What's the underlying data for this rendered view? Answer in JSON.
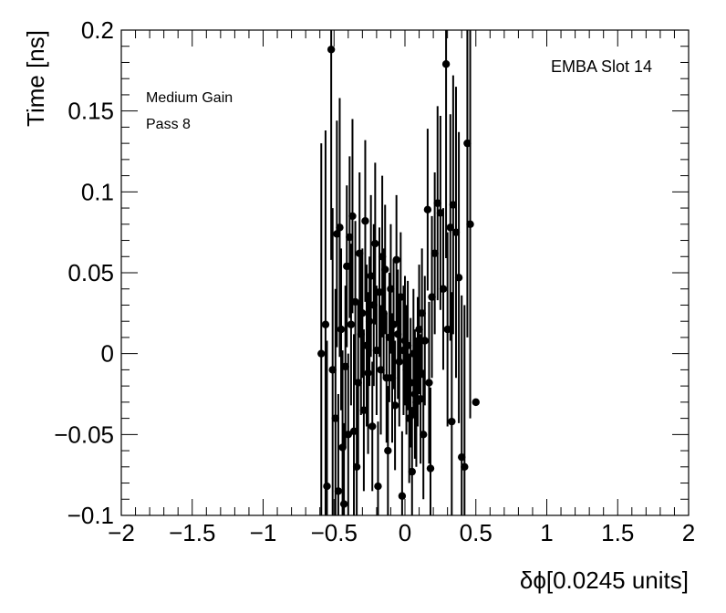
{
  "chart_data": {
    "type": "scatter",
    "title": "",
    "xlabel": "δϕ[0.0245 units]",
    "ylabel": "Time [ns]",
    "xlim": [
      -2,
      2
    ],
    "ylim": [
      -0.1,
      0.2
    ],
    "grid": false,
    "annotations": {
      "top_right": "EMBA Slot 14",
      "top_left_line1": "Medium Gain",
      "top_left_line2": "Pass 8"
    },
    "x_ticks": [
      -2,
      -1.5,
      -1,
      -0.5,
      0,
      0.5,
      1,
      1.5,
      2
    ],
    "x_tick_labels": [
      "−2",
      "−1.5",
      "−1",
      "−0.5",
      "0",
      "0.5",
      "1",
      "1.5",
      "2"
    ],
    "y_ticks": [
      -0.1,
      -0.05,
      0,
      0.05,
      0.1,
      0.15,
      0.2
    ],
    "y_tick_labels": [
      "−0.1",
      "−0.05",
      "0",
      "0.05",
      "0.1",
      "0.15",
      "0.2"
    ],
    "marker_color": "#000000",
    "points": [
      {
        "x": -0.59,
        "y": 0.0,
        "err": 0.13
      },
      {
        "x": -0.56,
        "y": 0.018,
        "err": 0.12
      },
      {
        "x": -0.55,
        "y": -0.082,
        "err": 0.09
      },
      {
        "x": -0.52,
        "y": 0.188,
        "err": 0.13
      },
      {
        "x": -0.51,
        "y": -0.01,
        "err": 0.1
      },
      {
        "x": -0.49,
        "y": -0.04,
        "err": 0.08
      },
      {
        "x": -0.48,
        "y": 0.074,
        "err": 0.07
      },
      {
        "x": -0.47,
        "y": -0.085,
        "err": 0.06
      },
      {
        "x": -0.46,
        "y": 0.078,
        "err": 0.08
      },
      {
        "x": -0.45,
        "y": 0.015,
        "err": 0.05
      },
      {
        "x": -0.44,
        "y": -0.058,
        "err": 0.06
      },
      {
        "x": -0.43,
        "y": -0.093,
        "err": 0.05
      },
      {
        "x": -0.42,
        "y": -0.008,
        "err": 0.05
      },
      {
        "x": -0.41,
        "y": 0.054,
        "err": 0.05
      },
      {
        "x": -0.4,
        "y": -0.05,
        "err": 0.05
      },
      {
        "x": -0.39,
        "y": 0.072,
        "err": 0.05
      },
      {
        "x": -0.38,
        "y": 0.018,
        "err": 0.05
      },
      {
        "x": -0.37,
        "y": 0.085,
        "err": 0.06
      },
      {
        "x": -0.36,
        "y": -0.048,
        "err": 0.06
      },
      {
        "x": -0.35,
        "y": 0.032,
        "err": 0.05
      },
      {
        "x": -0.34,
        "y": -0.07,
        "err": 0.05
      },
      {
        "x": -0.33,
        "y": -0.018,
        "err": 0.05
      },
      {
        "x": -0.32,
        "y": 0.062,
        "err": 0.05
      },
      {
        "x": -0.31,
        "y": 0.012,
        "err": 0.05
      },
      {
        "x": -0.3,
        "y": 0.025,
        "err": 0.04
      },
      {
        "x": -0.29,
        "y": -0.035,
        "err": 0.05
      },
      {
        "x": -0.28,
        "y": 0.082,
        "err": 0.05
      },
      {
        "x": -0.27,
        "y": 0.005,
        "err": 0.05
      },
      {
        "x": -0.26,
        "y": -0.012,
        "err": 0.05
      },
      {
        "x": -0.25,
        "y": 0.02,
        "err": 0.04
      },
      {
        "x": -0.24,
        "y": 0.048,
        "err": 0.05
      },
      {
        "x": -0.23,
        "y": -0.045,
        "err": 0.04
      },
      {
        "x": -0.22,
        "y": 0.03,
        "err": 0.05
      },
      {
        "x": -0.21,
        "y": 0.068,
        "err": 0.05
      },
      {
        "x": -0.2,
        "y": 0.002,
        "err": 0.04
      },
      {
        "x": -0.19,
        "y": -0.082,
        "err": 0.04
      },
      {
        "x": -0.18,
        "y": 0.038,
        "err": 0.04
      },
      {
        "x": -0.17,
        "y": -0.01,
        "err": 0.04
      },
      {
        "x": -0.16,
        "y": 0.06,
        "err": 0.05
      },
      {
        "x": -0.15,
        "y": 0.025,
        "err": 0.04
      },
      {
        "x": -0.14,
        "y": 0.052,
        "err": 0.04
      },
      {
        "x": -0.13,
        "y": -0.015,
        "err": 0.04
      },
      {
        "x": -0.12,
        "y": -0.06,
        "err": 0.04
      },
      {
        "x": -0.11,
        "y": 0.01,
        "err": 0.04
      },
      {
        "x": -0.1,
        "y": 0.04,
        "err": 0.04
      },
      {
        "x": -0.09,
        "y": -0.015,
        "err": 0.04
      },
      {
        "x": -0.08,
        "y": 0.018,
        "err": 0.04
      },
      {
        "x": -0.07,
        "y": -0.032,
        "err": 0.04
      },
      {
        "x": -0.06,
        "y": 0.058,
        "err": 0.04
      },
      {
        "x": -0.05,
        "y": 0.012,
        "err": 0.04
      },
      {
        "x": -0.04,
        "y": -0.005,
        "err": 0.04
      },
      {
        "x": -0.03,
        "y": 0.035,
        "err": 0.04
      },
      {
        "x": -0.02,
        "y": -0.088,
        "err": 0.04
      },
      {
        "x": -0.01,
        "y": 0.002,
        "err": 0.04
      },
      {
        "x": 0.0,
        "y": 0.008,
        "err": 0.04
      },
      {
        "x": 0.01,
        "y": -0.01,
        "err": 0.04
      },
      {
        "x": 0.02,
        "y": 0.005,
        "err": 0.04
      },
      {
        "x": 0.03,
        "y": -0.04,
        "err": 0.04
      },
      {
        "x": 0.04,
        "y": -0.018,
        "err": 0.04
      },
      {
        "x": 0.05,
        "y": -0.073,
        "err": 0.04
      },
      {
        "x": 0.06,
        "y": 0.0,
        "err": 0.04
      },
      {
        "x": 0.07,
        "y": -0.025,
        "err": 0.04
      },
      {
        "x": 0.08,
        "y": -0.03,
        "err": 0.04
      },
      {
        "x": 0.09,
        "y": -0.005,
        "err": 0.04
      },
      {
        "x": 0.1,
        "y": 0.015,
        "err": 0.04
      },
      {
        "x": 0.11,
        "y": -0.028,
        "err": 0.04
      },
      {
        "x": 0.12,
        "y": 0.025,
        "err": 0.04
      },
      {
        "x": 0.13,
        "y": -0.05,
        "err": 0.04
      },
      {
        "x": 0.14,
        "y": 0.008,
        "err": 0.04
      },
      {
        "x": 0.16,
        "y": 0.089,
        "err": 0.05
      },
      {
        "x": 0.17,
        "y": -0.018,
        "err": 0.05
      },
      {
        "x": 0.18,
        "y": -0.071,
        "err": 0.05
      },
      {
        "x": 0.19,
        "y": 0.035,
        "err": 0.05
      },
      {
        "x": 0.21,
        "y": 0.062,
        "err": 0.05
      },
      {
        "x": 0.23,
        "y": 0.093,
        "err": 0.06
      },
      {
        "x": 0.25,
        "y": 0.087,
        "err": 0.06
      },
      {
        "x": 0.27,
        "y": 0.04,
        "err": 0.05
      },
      {
        "x": 0.29,
        "y": 0.179,
        "err": 0.12
      },
      {
        "x": 0.3,
        "y": 0.015,
        "err": 0.06
      },
      {
        "x": 0.32,
        "y": 0.078,
        "err": 0.07
      },
      {
        "x": 0.33,
        "y": -0.042,
        "err": 0.08
      },
      {
        "x": 0.34,
        "y": 0.092,
        "err": 0.08
      },
      {
        "x": 0.36,
        "y": 0.075,
        "err": 0.09
      },
      {
        "x": 0.38,
        "y": 0.047,
        "err": 0.09
      },
      {
        "x": 0.4,
        "y": -0.064,
        "err": 0.1
      },
      {
        "x": 0.42,
        "y": -0.07,
        "err": 0.1
      },
      {
        "x": 0.44,
        "y": 0.13,
        "err": 0.12
      },
      {
        "x": 0.46,
        "y": 0.08,
        "err": 0.12
      },
      {
        "x": 0.5,
        "y": -0.03,
        "err": 0.0
      }
    ]
  }
}
